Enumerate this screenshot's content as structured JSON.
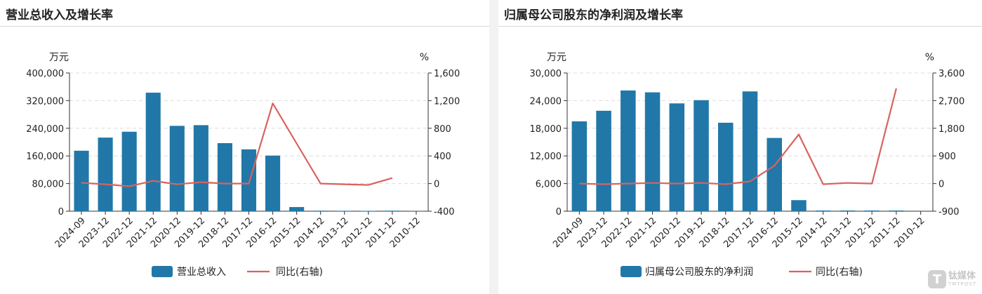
{
  "charts": {
    "left": {
      "title": "营业总收入及增长率"
    },
    "right": {
      "title": "归属母公司股东的净利润及增长率"
    }
  },
  "watermark": {
    "logo_letter": "T",
    "name": "钛媒体",
    "name_en": "TMTPOST"
  },
  "colors": {
    "bar": "#2178a8",
    "line": "#d9625f",
    "grid": "#dcdcdc"
  },
  "chart_data": [
    {
      "type": "bar",
      "title": "营业总收入及增长率",
      "categories": [
        "2024-09",
        "2023-12",
        "2022-12",
        "2021-12",
        "2020-12",
        "2019-12",
        "2018-12",
        "2017-12",
        "2016-12",
        "2015-12",
        "2014-12",
        "2013-12",
        "2012-12",
        "2011-12",
        "2010-12"
      ],
      "y_unit": "万元",
      "y2_unit": "%",
      "yticks": [
        "400,000",
        "320,000",
        "240,000",
        "160,000",
        "80,000",
        "0"
      ],
      "y2ticks": [
        "1,600",
        "1,200",
        "800",
        "400",
        "0",
        "-400"
      ],
      "ylim": [
        0,
        400000
      ],
      "y2lim": [
        -400,
        1600
      ],
      "grid": true,
      "legend": "bottom",
      "series": [
        {
          "name": "营业总收入",
          "type": "bar",
          "axis": "left",
          "values": [
            175000,
            213000,
            230000,
            343000,
            247000,
            249000,
            197000,
            179000,
            161000,
            12000,
            1500,
            1200,
            1000,
            1500,
            500
          ]
        },
        {
          "name": "同比(右轴)",
          "type": "line",
          "axis": "right",
          "values": [
            10,
            -10,
            -40,
            40,
            -10,
            20,
            0,
            0,
            1160,
            580,
            0,
            -10,
            -20,
            80,
            null
          ]
        }
      ]
    },
    {
      "type": "bar",
      "title": "归属母公司股东的净利润及增长率",
      "categories": [
        "2024-09",
        "2023-12",
        "2022-12",
        "2021-12",
        "2020-12",
        "2019-12",
        "2018-12",
        "2017-12",
        "2016-12",
        "2015-12",
        "2014-12",
        "2013-12",
        "2012-12",
        "2011-12",
        "2010-12"
      ],
      "y_unit": "万元",
      "y2_unit": "%",
      "yticks": [
        "30,000",
        "24,000",
        "18,000",
        "12,000",
        "6,000",
        "0"
      ],
      "y2ticks": [
        "3,600",
        "2,700",
        "1,800",
        "900",
        "0",
        "-900"
      ],
      "ylim": [
        0,
        30000
      ],
      "y2lim": [
        -900,
        3600
      ],
      "grid": true,
      "legend": "bottom",
      "series": [
        {
          "name": "归属母公司股东的净利润",
          "type": "bar",
          "axis": "left",
          "values": [
            19500,
            21800,
            26200,
            25800,
            23400,
            24100,
            19200,
            26000,
            15900,
            2400,
            150,
            150,
            150,
            150,
            0
          ]
        },
        {
          "name": "同比(右轴)",
          "type": "line",
          "axis": "right",
          "values": [
            0,
            -20,
            0,
            20,
            0,
            20,
            -20,
            70,
            580,
            1600,
            -20,
            20,
            0,
            3100,
            null
          ]
        }
      ]
    }
  ]
}
